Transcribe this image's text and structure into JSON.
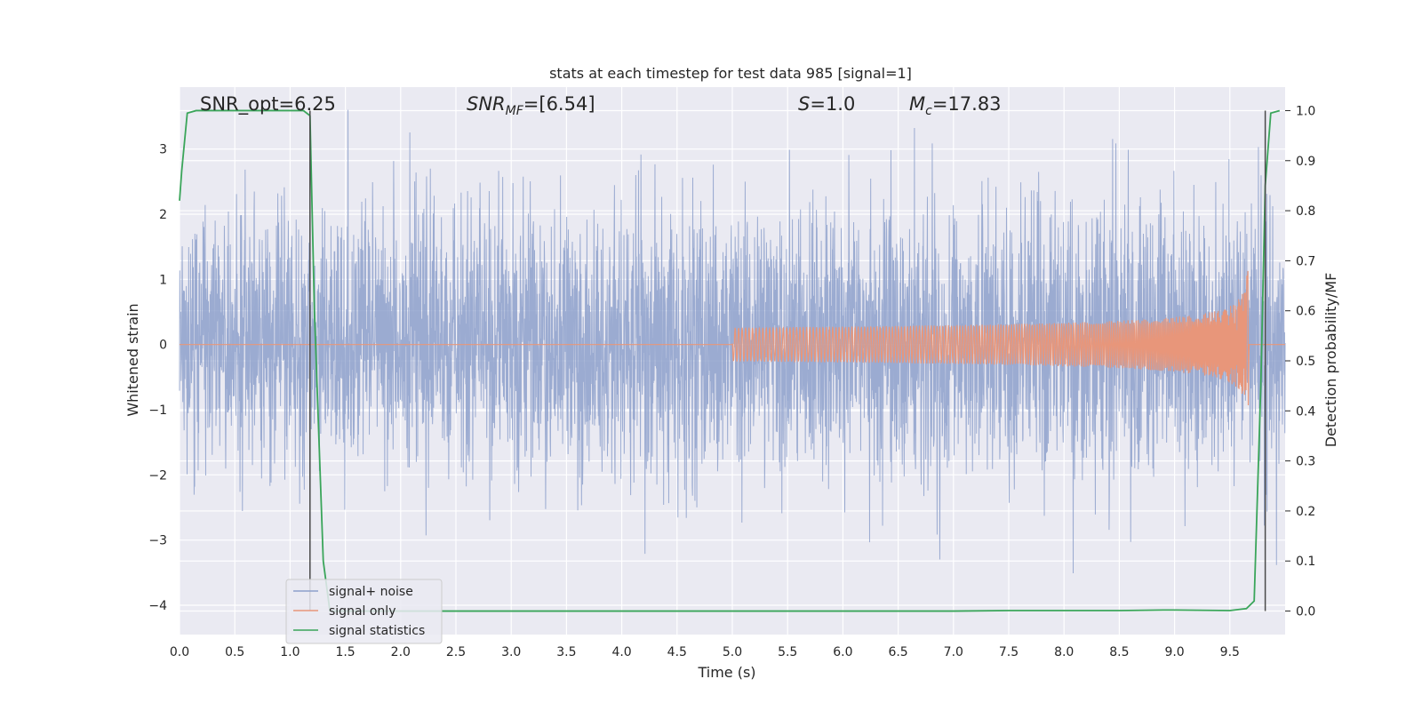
{
  "chart_data": {
    "type": "line",
    "title": "stats at each timestep for test data 985 [signal=1]",
    "xlabel": "Time (s)",
    "ylabel": "Whitened strain",
    "ylabel_right": "Detection probability/MF",
    "xlim": [
      0.0,
      10.0
    ],
    "ylim": [
      -4.45,
      3.95
    ],
    "ylim_right": [
      -0.047,
      1.047
    ],
    "xticks": [
      "0.0",
      "0.5",
      "1.0",
      "1.5",
      "2.0",
      "2.5",
      "3.0",
      "3.5",
      "4.0",
      "4.5",
      "5.0",
      "5.5",
      "6.0",
      "6.5",
      "7.0",
      "7.5",
      "8.0",
      "8.5",
      "9.0",
      "9.5"
    ],
    "yticks": [
      "3",
      "2",
      "1",
      "0",
      "−1",
      "−2",
      "−3",
      "−4"
    ],
    "yticks_right": [
      "1.0",
      "0.9",
      "0.8",
      "0.7",
      "0.6",
      "0.5",
      "0.4",
      "0.3",
      "0.2",
      "0.1",
      "0.0"
    ],
    "grid": true,
    "legend_position": "lower-left",
    "annotations": {
      "snr_opt": "SNR_opt=6.25",
      "snr_mf_name": "SNR",
      "snr_mf_sub": "MF",
      "snr_mf_value": "=[6.54]",
      "s_name": "S",
      "s_value": "=1.0",
      "mc_name": "M",
      "mc_sub": "c",
      "mc_value": "=17.83"
    },
    "colors": {
      "noise": "#8da0cb",
      "signal": "#e8967a",
      "stats": "#3aa55a",
      "vline": "#4a4a4a",
      "background": "#eaeaf2",
      "grid": "#ffffff"
    },
    "series": [
      {
        "name": "signal+ noise",
        "description_stats": {
          "std": 1.0,
          "min": -4.05,
          "max": 3.6
        }
      },
      {
        "name": "signal only",
        "chirp": {
          "start_time": 5.0,
          "merger_time": 9.67,
          "peak_amplitude": 1.15
        }
      },
      {
        "name": "signal statistics",
        "x": [
          0.0,
          0.02,
          0.07,
          0.15,
          0.5,
          1.0,
          1.12,
          1.18,
          1.22,
          1.3,
          1.36,
          2.0,
          3.0,
          4.0,
          5.0,
          6.0,
          7.0,
          7.5,
          8.0,
          8.5,
          8.9,
          9.0,
          9.5,
          9.65,
          9.72,
          9.78,
          9.82,
          9.87,
          9.95
        ],
        "y": [
          0.82,
          0.88,
          0.995,
          1.0,
          1.0,
          1.0,
          1.0,
          0.99,
          0.6,
          0.1,
          0.0,
          0.0,
          0.0,
          0.0,
          0.0,
          0.0,
          0.0,
          0.001,
          0.001,
          0.001,
          0.002,
          0.002,
          0.001,
          0.005,
          0.02,
          0.45,
          0.85,
          0.995,
          1.0
        ]
      }
    ],
    "vlines": [
      1.18,
      9.82
    ]
  }
}
